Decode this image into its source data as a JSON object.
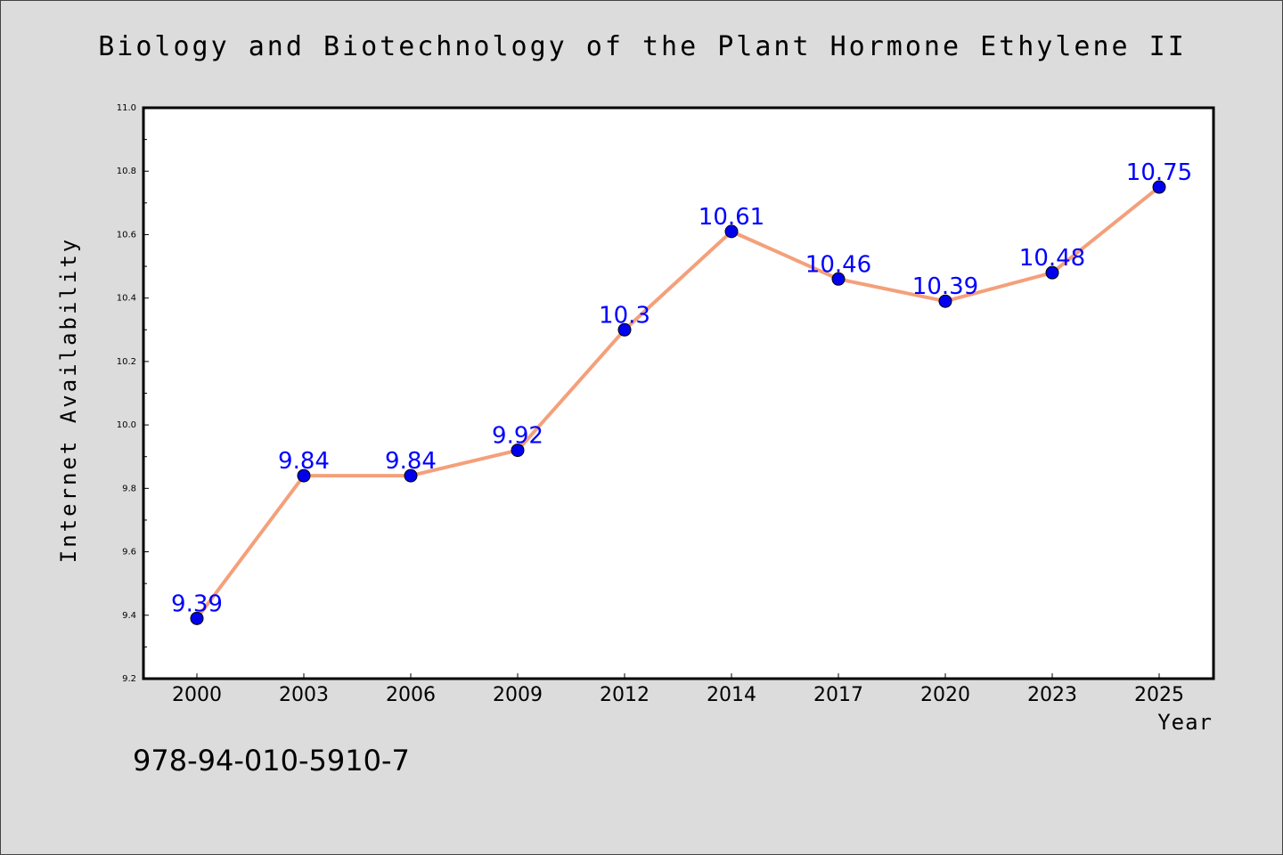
{
  "chart_data": {
    "type": "line",
    "title": "Biology and Biotechnology of the Plant Hormone Ethylene II",
    "xlabel": "Year",
    "ylabel": "Internet Availability",
    "categories": [
      "2000",
      "2003",
      "2006",
      "2009",
      "2012",
      "2014",
      "2017",
      "2020",
      "2023",
      "2025"
    ],
    "values": [
      9.39,
      9.84,
      9.84,
      9.92,
      10.3,
      10.61,
      10.46,
      10.39,
      10.48,
      10.75
    ],
    "data_labels": [
      "9.39",
      "9.84",
      "9.84",
      "9.92",
      "10.3",
      "10.61",
      "10.46",
      "10.39",
      "10.48",
      "10.75"
    ],
    "ylim": [
      9.2,
      11.0
    ],
    "y_ticks": [
      "9.2",
      "9.4",
      "9.6",
      "9.8",
      "10.0",
      "10.2",
      "10.4",
      "10.6",
      "10.8",
      "11.0"
    ],
    "grid": false,
    "legend": "none",
    "line_color": "#f4a07a",
    "marker_color": "#0000ee",
    "label_color": "#0000ff"
  },
  "footer": {
    "isbn": "978-94-010-5910-7"
  }
}
